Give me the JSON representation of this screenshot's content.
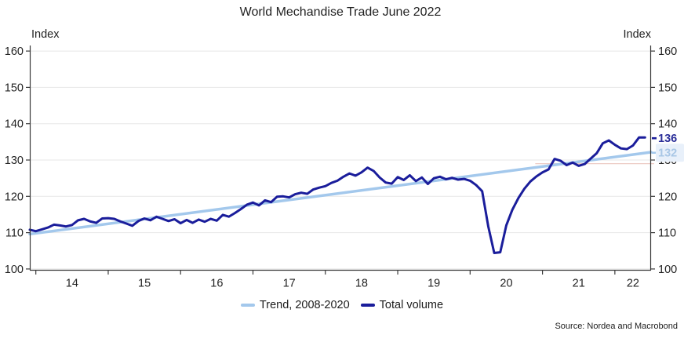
{
  "title": "World Mechandise Trade June 2022",
  "source": "Source: Nordea and Macrobond",
  "chart_data": {
    "type": "line",
    "title": "World Mechandise Trade June 2022",
    "ylabel_left": "Index",
    "ylabel_right": "Index",
    "grid": "horizontal",
    "legend_position": "bottom-center",
    "xlim": [
      2013.9167,
      2022.5
    ],
    "ylim": [
      100,
      160
    ],
    "yticks": [
      100,
      110,
      120,
      130,
      140,
      150,
      160
    ],
    "xticks": [
      2014,
      2015,
      2016,
      2017,
      2018,
      2019,
      2020,
      2021,
      2022
    ],
    "xtick_labels": [
      "14",
      "15",
      "16",
      "17",
      "18",
      "19",
      "20",
      "21",
      "22"
    ],
    "series": [
      {
        "name": "Trend, 2008-2020",
        "color": "#a3c8ec",
        "width": 3.5,
        "x": [
          2013.9167,
          2022.5
        ],
        "values": [
          109.6,
          132.15
        ]
      },
      {
        "name": "Total volume",
        "color": "#1a1d9b",
        "width": 3,
        "x_start": 2013.9167,
        "x_step": 0.083333,
        "values": [
          110.8,
          110.4,
          110.9,
          111.4,
          112.2,
          112.0,
          111.7,
          112.1,
          113.4,
          113.8,
          113.1,
          112.7,
          113.9,
          114.0,
          113.8,
          113.1,
          112.5,
          111.9,
          113.2,
          113.9,
          113.4,
          114.4,
          113.8,
          113.2,
          113.7,
          112.6,
          113.5,
          112.7,
          113.6,
          113.0,
          113.8,
          113.3,
          114.9,
          114.4,
          115.4,
          116.5,
          117.7,
          118.3,
          117.5,
          118.9,
          118.4,
          119.9,
          120.0,
          119.7,
          120.6,
          121.0,
          120.7,
          121.9,
          122.4,
          122.8,
          123.7,
          124.3,
          125.4,
          126.3,
          125.7,
          126.6,
          127.9,
          127.0,
          125.2,
          123.8,
          123.5,
          125.3,
          124.5,
          125.8,
          124.2,
          125.2,
          123.4,
          125.0,
          125.4,
          124.7,
          125.1,
          124.6,
          124.8,
          124.3,
          123.1,
          121.4,
          111.8,
          104.4,
          104.6,
          112.0,
          116.3,
          119.5,
          122.1,
          124.1,
          125.5,
          126.6,
          127.4,
          130.3,
          129.8,
          128.6,
          129.3,
          128.4,
          128.9,
          130.4,
          131.9,
          134.6,
          135.4,
          134.2,
          133.2,
          133.0,
          134.0,
          136.2,
          136.2
        ]
      }
    ],
    "end_labels": [
      {
        "text": "136",
        "value": 136,
        "color": "#2b2f99",
        "highlight": false
      },
      {
        "text": "132",
        "value": 132,
        "color": "#a9c7e6",
        "highlight": true,
        "highlight_bg": "#e8f0fa"
      }
    ],
    "reference_line": {
      "value": 129.0,
      "x_from": 2020.9,
      "color": "#edccc5"
    },
    "colors": {
      "gridline": "#e7e7e7",
      "axis": "#3a3a3a",
      "tick_text": "#242424"
    }
  },
  "legend_note": "legend labels come from chart_data.series names"
}
